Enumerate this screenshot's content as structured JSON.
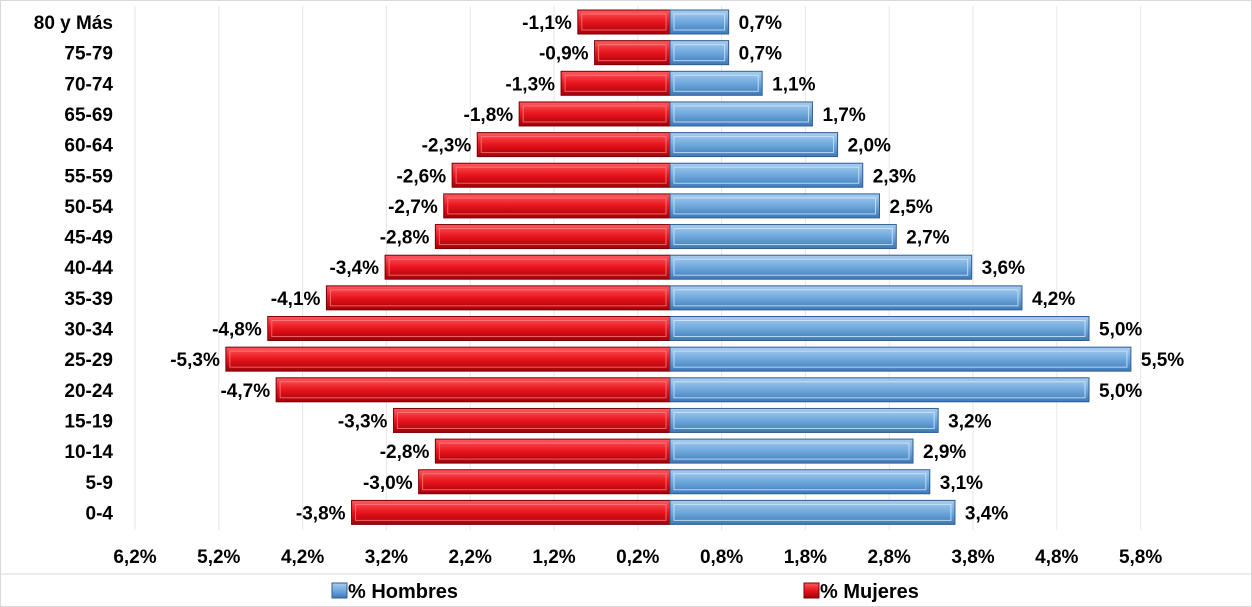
{
  "chart_data": {
    "type": "bar",
    "orientation": "horizontal",
    "title": "",
    "xlabel": "",
    "ylabel": "",
    "categories": [
      "80 y Más",
      "75-79",
      "70-74",
      "65-69",
      "60-64",
      "55-59",
      "50-54",
      "45-49",
      "40-44",
      "35-39",
      "30-34",
      "25-29",
      "20-24",
      "15-19",
      "10-14",
      "5-9",
      "0-4"
    ],
    "series": [
      {
        "name": "% Hombres",
        "color": "#6fa8dc",
        "values": [
          0.7,
          0.7,
          1.1,
          1.7,
          2.0,
          2.3,
          2.5,
          2.7,
          3.6,
          4.2,
          5.0,
          5.5,
          5.0,
          3.2,
          2.9,
          3.1,
          3.4
        ],
        "labels": [
          "0,7%",
          "0,7%",
          "1,1%",
          "1,7%",
          "2,0%",
          "2,3%",
          "2,5%",
          "2,7%",
          "3,6%",
          "4,2%",
          "5,0%",
          "5,5%",
          "5,0%",
          "3,2%",
          "2,9%",
          "3,1%",
          "3,4%"
        ]
      },
      {
        "name": "% Mujeres",
        "color": "#e8141c",
        "values": [
          -1.1,
          -0.9,
          -1.3,
          -1.8,
          -2.3,
          -2.6,
          -2.7,
          -2.8,
          -3.4,
          -4.1,
          -4.8,
          -5.3,
          -4.7,
          -3.3,
          -2.8,
          -3.0,
          -3.8
        ],
        "labels": [
          "-1,1%",
          "-0,9%",
          "-1,3%",
          "-1,8%",
          "-2,3%",
          "-2,6%",
          "-2,7%",
          "-2,8%",
          "-3,4%",
          "-4,1%",
          "-4,8%",
          "-5,3%",
          "-4,7%",
          "-3,3%",
          "-2,8%",
          "-3,0%",
          "-3,8%"
        ]
      }
    ],
    "tick_labels": [
      "6,2%",
      "5,2%",
      "4,2%",
      "3,2%",
      "2,2%",
      "1,2%",
      "0,2%",
      "0,8%",
      "1,8%",
      "2,8%",
      "3,8%",
      "4,8%",
      "5,8%"
    ],
    "xlim": [
      -6.2,
      6.2
    ],
    "grid": true,
    "legend": "bottom"
  }
}
